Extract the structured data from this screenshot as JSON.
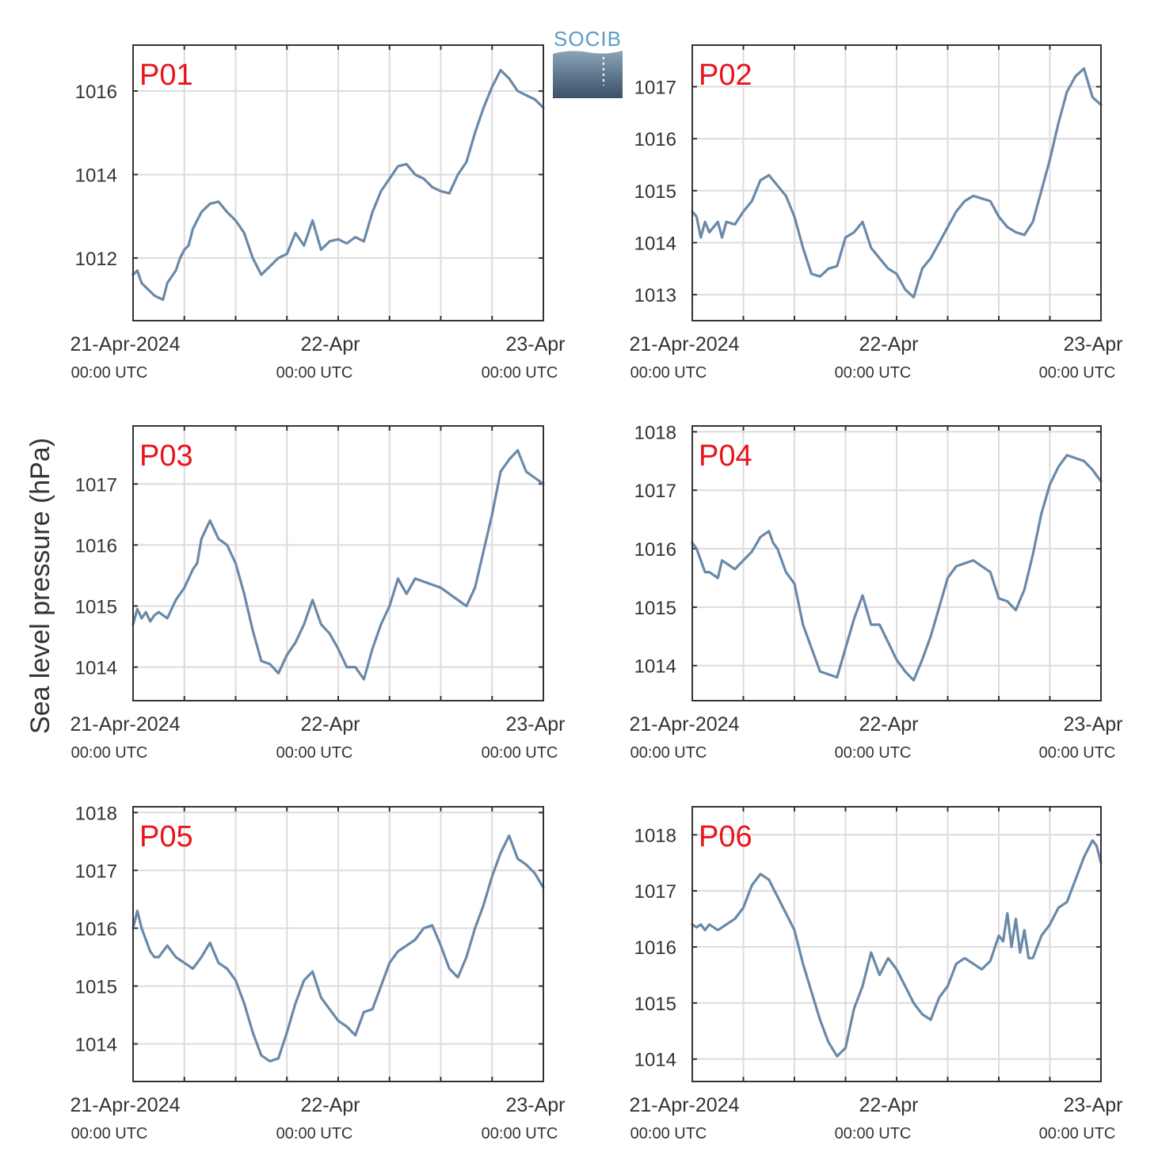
{
  "figure": {
    "ylabel": "Sea level pressure (hPa)",
    "logo_text": "SOCIB",
    "colors": {
      "line": "#6a89a8",
      "panel_label": "#e8141c",
      "grid": "#dcdcdc",
      "axis": "#333333",
      "logo_text": "#5a9cc4",
      "logo_top": "#8aa4b8",
      "logo_bottom": "#3a5068"
    }
  },
  "chart_data": [
    {
      "type": "line",
      "name": "P01",
      "x_ticks": [
        {
          "label": "21-Apr-2024",
          "sublabel": "00:00 UTC",
          "t": 0
        },
        {
          "label": "22-Apr",
          "sublabel": "00:00 UTC",
          "t": 24
        },
        {
          "label": "23-Apr",
          "sublabel": "00:00 UTC",
          "t": 48
        }
      ],
      "xlim": [
        0,
        48
      ],
      "ylim": [
        1010.5,
        1017.1
      ],
      "yticks": [
        1012,
        1014,
        1016
      ],
      "series": [
        {
          "x": [
            0,
            0.5,
            1,
            1.5,
            2,
            2.5,
            3,
            3.5,
            4,
            5,
            5.5,
            6,
            6.5,
            7,
            8,
            9,
            10,
            11,
            12,
            13,
            14,
            15,
            16,
            17,
            18,
            19,
            20,
            21,
            22,
            23,
            24,
            25,
            26,
            27,
            28,
            29,
            30,
            31,
            32,
            33,
            34,
            35,
            36,
            37,
            38,
            39,
            40,
            41,
            42,
            43,
            44,
            45,
            46,
            47,
            48
          ],
          "y": [
            1011.6,
            1011.7,
            1011.4,
            1011.3,
            1011.2,
            1011.1,
            1011.05,
            1011.0,
            1011.4,
            1011.7,
            1012.0,
            1012.2,
            1012.3,
            1012.7,
            1013.1,
            1013.3,
            1013.35,
            1013.1,
            1012.9,
            1012.6,
            1012.0,
            1011.6,
            1011.8,
            1012.0,
            1012.1,
            1012.6,
            1012.3,
            1012.9,
            1012.2,
            1012.4,
            1012.45,
            1012.35,
            1012.5,
            1012.4,
            1013.1,
            1013.6,
            1013.9,
            1014.2,
            1014.25,
            1014.0,
            1013.9,
            1013.7,
            1013.6,
            1013.55,
            1014.0,
            1014.3,
            1015.0,
            1015.6,
            1016.1,
            1016.5,
            1016.3,
            1016.0,
            1015.9,
            1015.8,
            1015.6
          ]
        }
      ]
    },
    {
      "type": "line",
      "name": "P02",
      "x_ticks": [
        {
          "label": "21-Apr-2024",
          "sublabel": "00:00 UTC",
          "t": 0
        },
        {
          "label": "22-Apr",
          "sublabel": "00:00 UTC",
          "t": 24
        },
        {
          "label": "23-Apr",
          "sublabel": "00:00 UTC",
          "t": 48
        }
      ],
      "xlim": [
        0,
        48
      ],
      "ylim": [
        1012.5,
        1017.8
      ],
      "yticks": [
        1013,
        1014,
        1015,
        1016,
        1017
      ],
      "series": [
        {
          "x": [
            0,
            0.5,
            1,
            1.5,
            2,
            2.5,
            3,
            3.5,
            4,
            5,
            6,
            7,
            8,
            9,
            10,
            11,
            12,
            13,
            14,
            15,
            16,
            17,
            18,
            19,
            20,
            21,
            22,
            23,
            24,
            25,
            26,
            27,
            28,
            29,
            30,
            31,
            32,
            33,
            34,
            35,
            36,
            37,
            38,
            39,
            40,
            41,
            42,
            43,
            44,
            45,
            46,
            47,
            48
          ],
          "y": [
            1014.6,
            1014.5,
            1014.1,
            1014.4,
            1014.2,
            1014.3,
            1014.4,
            1014.1,
            1014.4,
            1014.35,
            1014.6,
            1014.8,
            1015.2,
            1015.3,
            1015.1,
            1014.9,
            1014.5,
            1013.9,
            1013.4,
            1013.35,
            1013.5,
            1013.55,
            1014.1,
            1014.2,
            1014.4,
            1013.9,
            1013.7,
            1013.5,
            1013.4,
            1013.1,
            1012.95,
            1013.5,
            1013.7,
            1014.0,
            1014.3,
            1014.6,
            1014.8,
            1014.9,
            1014.85,
            1014.8,
            1014.5,
            1014.3,
            1014.2,
            1014.15,
            1014.4,
            1015.0,
            1015.6,
            1016.3,
            1016.9,
            1017.2,
            1017.35,
            1016.8,
            1016.65
          ]
        }
      ]
    },
    {
      "type": "line",
      "name": "P03",
      "x_ticks": [
        {
          "label": "21-Apr-2024",
          "sublabel": "00:00 UTC",
          "t": 0
        },
        {
          "label": "22-Apr",
          "sublabel": "00:00 UTC",
          "t": 24
        },
        {
          "label": "23-Apr",
          "sublabel": "00:00 UTC",
          "t": 48
        }
      ],
      "xlim": [
        0,
        48
      ],
      "ylim": [
        1013.45,
        1017.95
      ],
      "yticks": [
        1014,
        1015,
        1016,
        1017
      ],
      "series": [
        {
          "x": [
            0,
            0.5,
            1,
            1.5,
            2,
            2.5,
            3,
            4,
            5,
            6,
            7,
            7.5,
            8,
            8.5,
            9,
            10,
            11,
            12,
            13,
            14,
            15,
            16,
            17,
            18,
            19,
            20,
            21,
            22,
            23,
            24,
            25,
            26,
            27,
            28,
            29,
            30,
            31,
            32,
            33,
            34,
            35,
            36,
            37,
            38,
            39,
            40,
            41,
            42,
            43,
            44,
            45,
            46,
            47,
            48
          ],
          "y": [
            1014.7,
            1014.95,
            1014.8,
            1014.9,
            1014.75,
            1014.85,
            1014.9,
            1014.8,
            1015.1,
            1015.3,
            1015.6,
            1015.7,
            1016.1,
            1016.25,
            1016.4,
            1016.1,
            1016.0,
            1015.7,
            1015.2,
            1014.6,
            1014.1,
            1014.05,
            1013.9,
            1014.2,
            1014.4,
            1014.7,
            1015.1,
            1014.7,
            1014.55,
            1014.3,
            1014.0,
            1014.0,
            1013.8,
            1014.3,
            1014.7,
            1015.0,
            1015.45,
            1015.2,
            1015.45,
            1015.4,
            1015.35,
            1015.3,
            1015.2,
            1015.1,
            1015.0,
            1015.3,
            1015.9,
            1016.5,
            1017.2,
            1017.4,
            1017.55,
            1017.2,
            1017.1,
            1017.0
          ]
        }
      ]
    },
    {
      "type": "line",
      "name": "P04",
      "x_ticks": [
        {
          "label": "21-Apr-2024",
          "sublabel": "00:00 UTC",
          "t": 0
        },
        {
          "label": "22-Apr",
          "sublabel": "00:00 UTC",
          "t": 24
        },
        {
          "label": "23-Apr",
          "sublabel": "00:00 UTC",
          "t": 48
        }
      ],
      "xlim": [
        0,
        48
      ],
      "ylim": [
        1013.4,
        1018.1
      ],
      "yticks": [
        1014,
        1015,
        1016,
        1017,
        1018
      ],
      "series": [
        {
          "x": [
            0,
            0.5,
            1,
            1.5,
            2,
            3,
            3.5,
            4,
            5,
            6,
            7,
            8,
            9,
            9.5,
            10,
            11,
            12,
            13,
            14,
            15,
            16,
            17,
            18,
            19,
            20,
            21,
            22,
            23,
            24,
            25,
            26,
            27,
            28,
            29,
            30,
            31,
            32,
            33,
            34,
            35,
            36,
            37,
            38,
            39,
            40,
            41,
            42,
            43,
            44,
            45,
            46,
            47,
            48
          ],
          "y": [
            1016.1,
            1016.0,
            1015.8,
            1015.6,
            1015.6,
            1015.5,
            1015.8,
            1015.75,
            1015.65,
            1015.8,
            1015.95,
            1016.2,
            1016.3,
            1016.1,
            1016.0,
            1015.6,
            1015.4,
            1014.7,
            1014.3,
            1013.9,
            1013.85,
            1013.8,
            1014.3,
            1014.8,
            1015.2,
            1014.7,
            1014.7,
            1014.4,
            1014.1,
            1013.9,
            1013.75,
            1014.1,
            1014.5,
            1015.0,
            1015.5,
            1015.7,
            1015.75,
            1015.8,
            1015.7,
            1015.6,
            1015.15,
            1015.1,
            1014.95,
            1015.3,
            1015.9,
            1016.6,
            1017.1,
            1017.4,
            1017.6,
            1017.55,
            1017.5,
            1017.35,
            1017.15
          ]
        }
      ]
    },
    {
      "type": "line",
      "name": "P05",
      "x_ticks": [
        {
          "label": "21-Apr-2024",
          "sublabel": "00:00 UTC",
          "t": 0
        },
        {
          "label": "22-Apr",
          "sublabel": "00:00 UTC",
          "t": 24
        },
        {
          "label": "23-Apr",
          "sublabel": "00:00 UTC",
          "t": 48
        }
      ],
      "xlim": [
        0,
        48
      ],
      "ylim": [
        1013.35,
        1018.1
      ],
      "yticks": [
        1014,
        1015,
        1016,
        1017,
        1018
      ],
      "series": [
        {
          "x": [
            0,
            0.5,
            1,
            1.5,
            2,
            2.5,
            3,
            4,
            5,
            6,
            7,
            8,
            9,
            10,
            11,
            12,
            13,
            14,
            15,
            16,
            17,
            18,
            19,
            20,
            21,
            22,
            23,
            24,
            25,
            26,
            27,
            28,
            29,
            30,
            31,
            32,
            33,
            34,
            35,
            36,
            37,
            38,
            39,
            40,
            41,
            42,
            43,
            44,
            45,
            46,
            47,
            48
          ],
          "y": [
            1016.0,
            1016.3,
            1016.0,
            1015.8,
            1015.6,
            1015.5,
            1015.5,
            1015.7,
            1015.5,
            1015.4,
            1015.3,
            1015.5,
            1015.75,
            1015.4,
            1015.3,
            1015.1,
            1014.7,
            1014.2,
            1013.8,
            1013.7,
            1013.75,
            1014.2,
            1014.7,
            1015.1,
            1015.25,
            1014.8,
            1014.6,
            1014.4,
            1014.3,
            1014.15,
            1014.55,
            1014.6,
            1015.0,
            1015.4,
            1015.6,
            1015.7,
            1015.8,
            1016.0,
            1016.05,
            1015.7,
            1015.3,
            1015.15,
            1015.5,
            1016.0,
            1016.4,
            1016.9,
            1017.3,
            1017.6,
            1017.2,
            1017.1,
            1016.95,
            1016.7
          ]
        }
      ]
    },
    {
      "type": "line",
      "name": "P06",
      "x_ticks": [
        {
          "label": "21-Apr-2024",
          "sublabel": "00:00 UTC",
          "t": 0
        },
        {
          "label": "22-Apr",
          "sublabel": "00:00 UTC",
          "t": 24
        },
        {
          "label": "23-Apr",
          "sublabel": "00:00 UTC",
          "t": 48
        }
      ],
      "xlim": [
        0,
        48
      ],
      "ylim": [
        1013.6,
        1018.5
      ],
      "yticks": [
        1014,
        1015,
        1016,
        1017,
        1018
      ],
      "series": [
        {
          "x": [
            0,
            0.5,
            1,
            1.5,
            2,
            3,
            4,
            5,
            6,
            7,
            8,
            9,
            10,
            11,
            12,
            13,
            14,
            15,
            16,
            17,
            18,
            19,
            20,
            21,
            22,
            23,
            24,
            25,
            26,
            27,
            28,
            29,
            30,
            31,
            32,
            33,
            34,
            35,
            36,
            36.5,
            37,
            37.5,
            38,
            38.5,
            39,
            39.5,
            40,
            41,
            42,
            43,
            44,
            45,
            46,
            47,
            47.5,
            48
          ],
          "y": [
            1016.4,
            1016.35,
            1016.4,
            1016.3,
            1016.4,
            1016.3,
            1016.4,
            1016.5,
            1016.7,
            1017.1,
            1017.3,
            1017.2,
            1016.9,
            1016.6,
            1016.3,
            1015.7,
            1015.2,
            1014.7,
            1014.3,
            1014.05,
            1014.2,
            1014.9,
            1015.3,
            1015.9,
            1015.5,
            1015.8,
            1015.6,
            1015.3,
            1015.0,
            1014.8,
            1014.7,
            1015.1,
            1015.3,
            1015.7,
            1015.8,
            1015.7,
            1015.6,
            1015.75,
            1016.2,
            1016.1,
            1016.6,
            1016.0,
            1016.5,
            1015.9,
            1016.3,
            1015.8,
            1015.8,
            1016.2,
            1016.4,
            1016.7,
            1016.8,
            1017.2,
            1017.6,
            1017.9,
            1017.8,
            1017.5
          ]
        }
      ]
    }
  ]
}
